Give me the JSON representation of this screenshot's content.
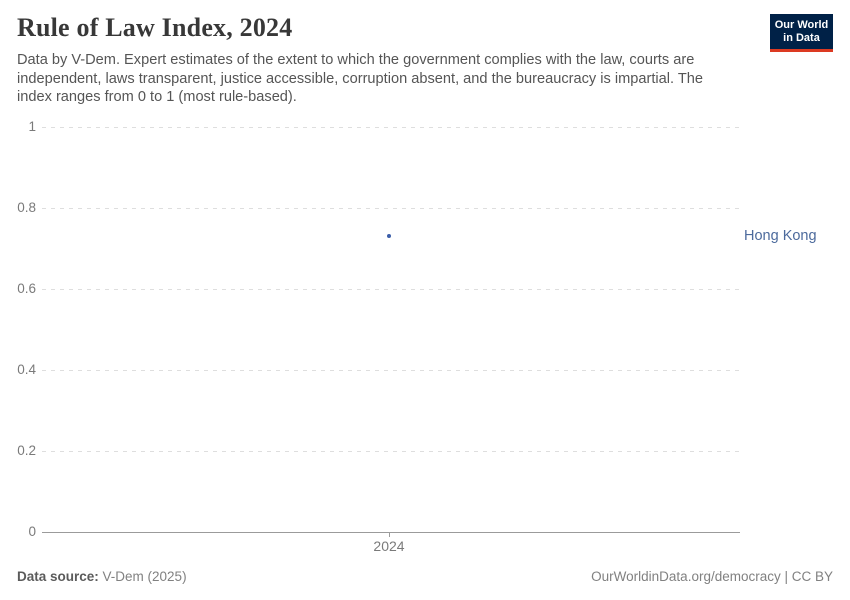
{
  "header": {
    "title": "Rule of Law Index, 2024",
    "subtitle": "Data by V-Dem. Expert estimates of the extent to which the government complies with the law, courts are independent, laws transparent, justice accessible, corruption absent, and the bureaucracy is impartial. The index ranges from 0 to 1 (most rule-based).",
    "logo": {
      "line1": "Our World",
      "line2": "in Data",
      "bg_color": "#002147",
      "bar_color": "#dc3a22"
    }
  },
  "chart_data": {
    "type": "scatter",
    "title": "Rule of Law Index, 2024",
    "xlabel": "",
    "ylabel": "",
    "ylim": [
      0,
      1
    ],
    "grid": true,
    "x_ticks": [
      {
        "label": "2024",
        "x": 2024
      }
    ],
    "y_ticks": [
      {
        "value": 0,
        "label": "0"
      },
      {
        "value": 0.2,
        "label": "0.2"
      },
      {
        "value": 0.4,
        "label": "0.4"
      },
      {
        "value": 0.6,
        "label": "0.6"
      },
      {
        "value": 0.8,
        "label": "0.8"
      },
      {
        "value": 1,
        "label": "1"
      }
    ],
    "series": [
      {
        "name": "Hong Kong",
        "x": [
          2024
        ],
        "values": [
          0.73
        ],
        "point_color": "#3c5ea9",
        "label_color": "#4c6a9c"
      }
    ],
    "legend_position": "right-of-plot"
  },
  "footer": {
    "source_label": "Data source:",
    "source_value": " V-Dem (2025)",
    "rights": "OurWorldinData.org/democracy | CC BY"
  }
}
